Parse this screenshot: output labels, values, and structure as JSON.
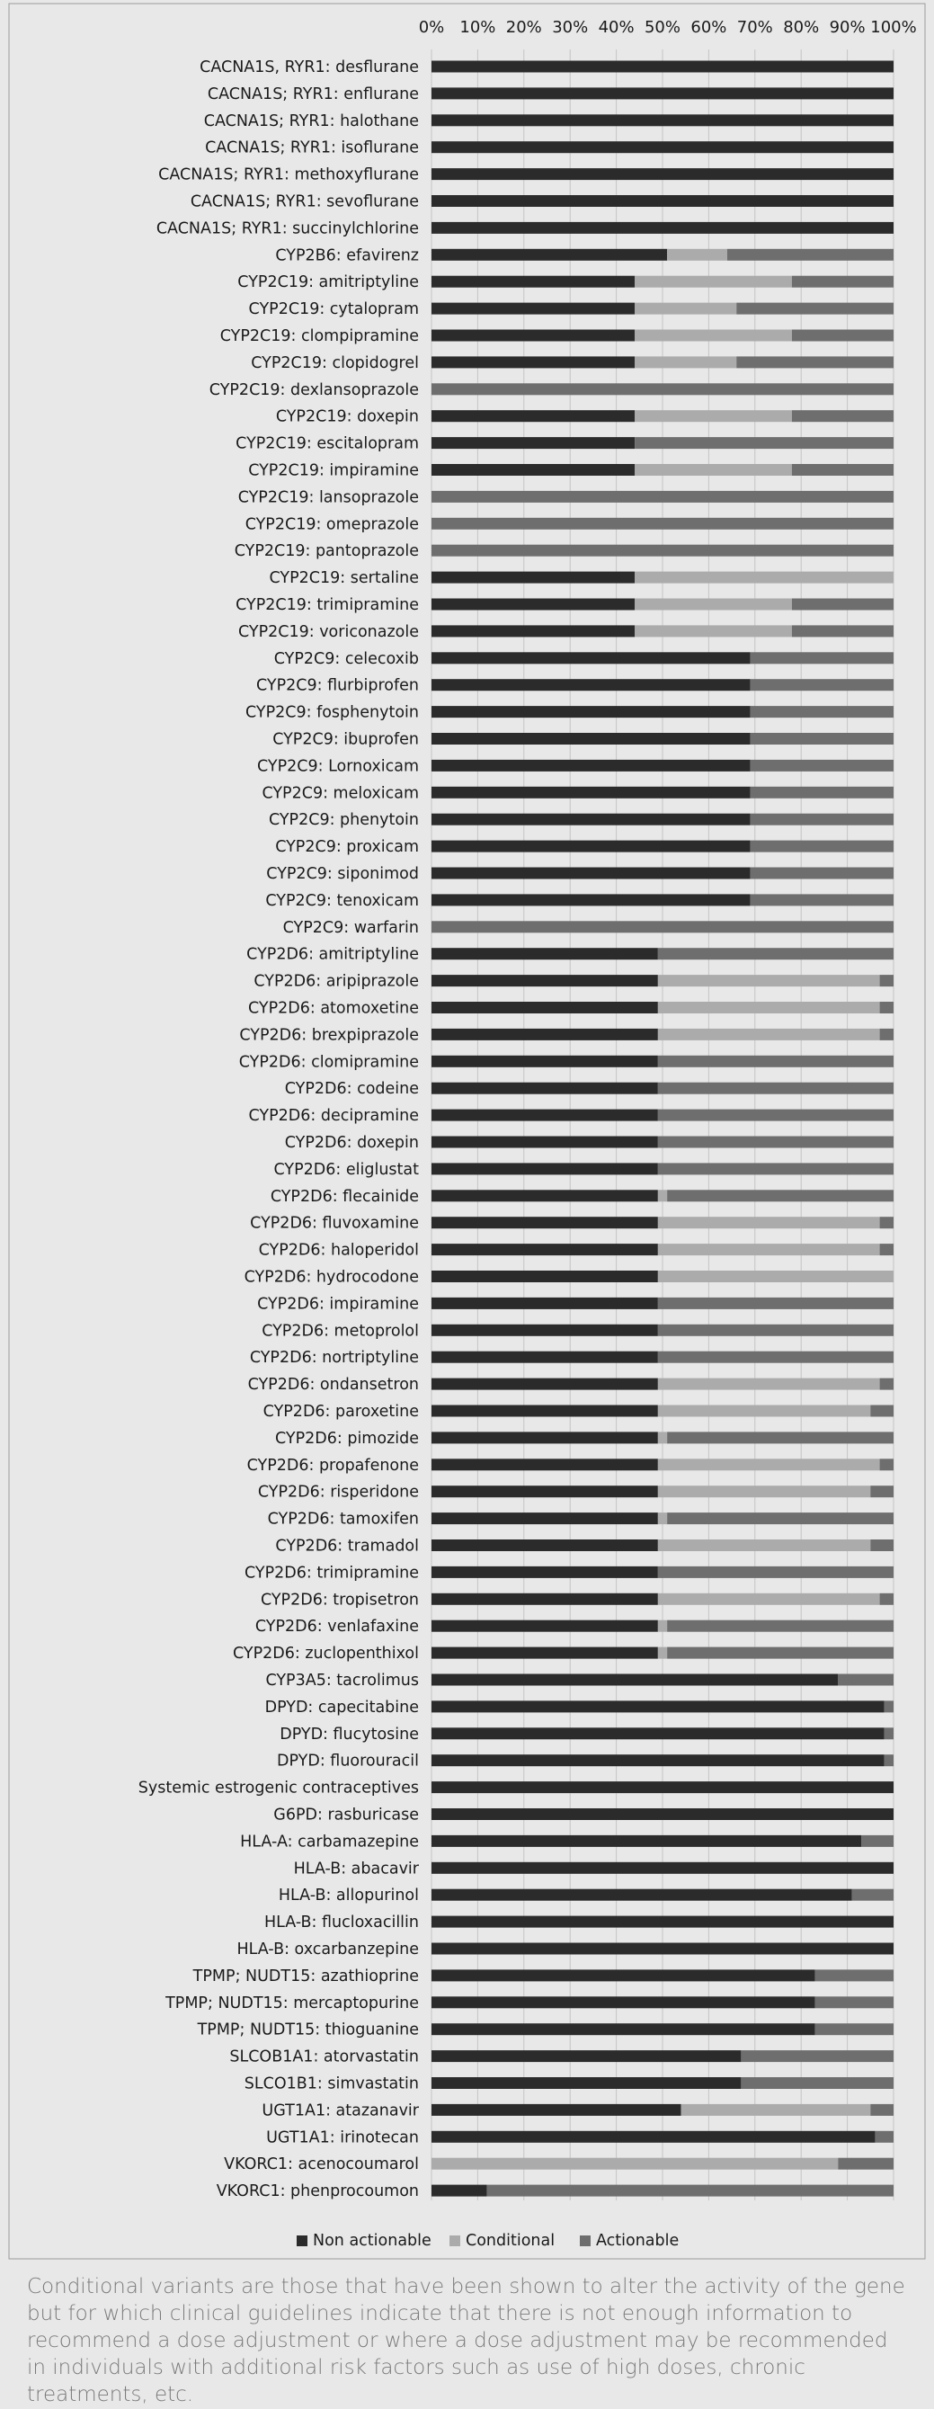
{
  "chart_data": {
    "type": "bar",
    "stacked": true,
    "orientation": "horizontal",
    "x_ticks": [
      "0%",
      "10%",
      "20%",
      "30%",
      "40%",
      "50%",
      "60%",
      "70%",
      "80%",
      "90%",
      "100%"
    ],
    "xlim": [
      0,
      100
    ],
    "legend_position": "bottom",
    "series": [
      {
        "name": "Non actionable",
        "color": "#2b2b2b"
      },
      {
        "name": "Conditional",
        "color": "#ababab"
      },
      {
        "name": "Actionable",
        "color": "#6e6e6e"
      }
    ],
    "rows": [
      {
        "label": "CACNA1S, RYR1: desflurane",
        "values": [
          100,
          0,
          0
        ]
      },
      {
        "label": "CACNA1S; RYR1: enflurane",
        "values": [
          100,
          0,
          0
        ]
      },
      {
        "label": "CACNA1S; RYR1: halothane",
        "values": [
          100,
          0,
          0
        ]
      },
      {
        "label": "CACNA1S; RYR1: isoflurane",
        "values": [
          100,
          0,
          0
        ]
      },
      {
        "label": "CACNA1S; RYR1: methoxyflurane",
        "values": [
          100,
          0,
          0
        ]
      },
      {
        "label": "CACNA1S; RYR1: sevoflurane",
        "values": [
          100,
          0,
          0
        ]
      },
      {
        "label": "CACNA1S; RYR1: succinylchlorine",
        "values": [
          100,
          0,
          0
        ]
      },
      {
        "label": "CYP2B6: efavirenz",
        "values": [
          51,
          13,
          36
        ]
      },
      {
        "label": "CYP2C19: amitriptyline",
        "values": [
          44,
          34,
          22
        ]
      },
      {
        "label": "CYP2C19: cytalopram",
        "values": [
          44,
          22,
          34
        ]
      },
      {
        "label": "CYP2C19: clompipramine",
        "values": [
          44,
          34,
          22
        ]
      },
      {
        "label": "CYP2C19: clopidogrel",
        "values": [
          44,
          22,
          34
        ]
      },
      {
        "label": "CYP2C19: dexlansoprazole",
        "values": [
          0,
          0,
          100
        ]
      },
      {
        "label": "CYP2C19: doxepin",
        "values": [
          44,
          34,
          22
        ]
      },
      {
        "label": "CYP2C19: escitalopram",
        "values": [
          44,
          0,
          56
        ]
      },
      {
        "label": "CYP2C19: impiramine",
        "values": [
          44,
          34,
          22
        ]
      },
      {
        "label": "CYP2C19: lansoprazole",
        "values": [
          0,
          0,
          100
        ]
      },
      {
        "label": "CYP2C19: omeprazole",
        "values": [
          0,
          0,
          100
        ]
      },
      {
        "label": "CYP2C19: pantoprazole",
        "values": [
          0,
          0,
          100
        ]
      },
      {
        "label": "CYP2C19: sertaline",
        "values": [
          44,
          56,
          0
        ]
      },
      {
        "label": "CYP2C19: trimipramine",
        "values": [
          44,
          34,
          22
        ]
      },
      {
        "label": "CYP2C19: voriconazole",
        "values": [
          44,
          34,
          22
        ]
      },
      {
        "label": "CYP2C9: celecoxib",
        "values": [
          69,
          0,
          31
        ]
      },
      {
        "label": "CYP2C9: flurbiprofen",
        "values": [
          69,
          0,
          31
        ]
      },
      {
        "label": "CYP2C9: fosphenytoin",
        "values": [
          69,
          0,
          31
        ]
      },
      {
        "label": "CYP2C9: ibuprofen",
        "values": [
          69,
          0,
          31
        ]
      },
      {
        "label": "CYP2C9: Lornoxicam",
        "values": [
          69,
          0,
          31
        ]
      },
      {
        "label": "CYP2C9: meloxicam",
        "values": [
          69,
          0,
          31
        ]
      },
      {
        "label": "CYP2C9: phenytoin",
        "values": [
          69,
          0,
          31
        ]
      },
      {
        "label": "CYP2C9: proxicam",
        "values": [
          69,
          0,
          31
        ]
      },
      {
        "label": "CYP2C9: siponimod",
        "values": [
          69,
          0,
          31
        ]
      },
      {
        "label": "CYP2C9: tenoxicam",
        "values": [
          69,
          0,
          31
        ]
      },
      {
        "label": "CYP2C9: warfarin",
        "values": [
          0,
          0,
          100
        ]
      },
      {
        "label": "CYP2D6: amitriptyline",
        "values": [
          49,
          0,
          51
        ]
      },
      {
        "label": "CYP2D6: aripiprazole",
        "values": [
          49,
          48,
          3
        ]
      },
      {
        "label": "CYP2D6: atomoxetine",
        "values": [
          49,
          48,
          3
        ]
      },
      {
        "label": "CYP2D6: brexpiprazole",
        "values": [
          49,
          48,
          3
        ]
      },
      {
        "label": "CYP2D6: clomipramine",
        "values": [
          49,
          0,
          51
        ]
      },
      {
        "label": "CYP2D6: codeine",
        "values": [
          49,
          0,
          51
        ]
      },
      {
        "label": "CYP2D6: decipramine",
        "values": [
          49,
          0,
          51
        ]
      },
      {
        "label": "CYP2D6: doxepin",
        "values": [
          49,
          0,
          51
        ]
      },
      {
        "label": "CYP2D6: eliglustat",
        "values": [
          49,
          0,
          51
        ]
      },
      {
        "label": "CYP2D6: flecainide",
        "values": [
          49,
          2,
          49
        ]
      },
      {
        "label": "CYP2D6: fluvoxamine",
        "values": [
          49,
          48,
          3
        ]
      },
      {
        "label": "CYP2D6: haloperidol",
        "values": [
          49,
          48,
          3
        ]
      },
      {
        "label": "CYP2D6: hydrocodone",
        "values": [
          49,
          51,
          0
        ]
      },
      {
        "label": "CYP2D6: impiramine",
        "values": [
          49,
          0,
          51
        ]
      },
      {
        "label": "CYP2D6: metoprolol",
        "values": [
          49,
          0,
          51
        ]
      },
      {
        "label": "CYP2D6: nortriptyline",
        "values": [
          49,
          0,
          51
        ]
      },
      {
        "label": "CYP2D6: ondansetron",
        "values": [
          49,
          48,
          3
        ]
      },
      {
        "label": "CYP2D6: paroxetine",
        "values": [
          49,
          46,
          5
        ]
      },
      {
        "label": "CYP2D6: pimozide",
        "values": [
          49,
          2,
          49
        ]
      },
      {
        "label": "CYP2D6: propafenone",
        "values": [
          49,
          48,
          3
        ]
      },
      {
        "label": "CYP2D6: risperidone",
        "values": [
          49,
          46,
          5
        ]
      },
      {
        "label": "CYP2D6: tamoxifen",
        "values": [
          49,
          2,
          49
        ]
      },
      {
        "label": "CYP2D6: tramadol",
        "values": [
          49,
          46,
          5
        ]
      },
      {
        "label": "CYP2D6: trimipramine",
        "values": [
          49,
          0,
          51
        ]
      },
      {
        "label": "CYP2D6: tropisetron",
        "values": [
          49,
          48,
          3
        ]
      },
      {
        "label": "CYP2D6: venlafaxine",
        "values": [
          49,
          2,
          49
        ]
      },
      {
        "label": "CYP2D6: zuclopenthixol",
        "values": [
          49,
          2,
          49
        ]
      },
      {
        "label": "CYP3A5: tacrolimus",
        "values": [
          88,
          0,
          12
        ]
      },
      {
        "label": "DPYD: capecitabine",
        "values": [
          98,
          0,
          2
        ]
      },
      {
        "label": "DPYD: flucytosine",
        "values": [
          98,
          0,
          2
        ]
      },
      {
        "label": "DPYD: fluorouracil",
        "values": [
          98,
          0,
          2
        ]
      },
      {
        "label": "Systemic estrogenic contraceptives",
        "values": [
          100,
          0,
          0
        ]
      },
      {
        "label": "G6PD: rasburicase",
        "values": [
          100,
          0,
          0
        ]
      },
      {
        "label": "HLA-A: carbamazepine",
        "values": [
          93,
          0,
          7
        ]
      },
      {
        "label": "HLA-B: abacavir",
        "values": [
          100,
          0,
          0
        ]
      },
      {
        "label": "HLA-B: allopurinol",
        "values": [
          91,
          0,
          9
        ]
      },
      {
        "label": "HLA-B: flucloxacillin",
        "values": [
          100,
          0,
          0
        ]
      },
      {
        "label": "HLA-B: oxcarbanzepine",
        "values": [
          100,
          0,
          0
        ]
      },
      {
        "label": "TPMP; NUDT15: azathioprine",
        "values": [
          83,
          0,
          17
        ]
      },
      {
        "label": "TPMP; NUDT15: mercaptopurine",
        "values": [
          83,
          0,
          17
        ]
      },
      {
        "label": "TPMP; NUDT15: thioguanine",
        "values": [
          83,
          0,
          17
        ]
      },
      {
        "label": "SLCOB1A1: atorvastatin",
        "values": [
          67,
          0,
          33
        ]
      },
      {
        "label": "SLCO1B1: simvastatin",
        "values": [
          67,
          0,
          33
        ]
      },
      {
        "label": "UGT1A1: atazanavir",
        "values": [
          54,
          41,
          5
        ]
      },
      {
        "label": "UGT1A1: irinotecan",
        "values": [
          96,
          0,
          4
        ]
      },
      {
        "label": "VKORC1: acenocoumarol",
        "values": [
          0,
          88,
          12
        ]
      },
      {
        "label": "VKORC1: phenprocoumon",
        "values": [
          12,
          0,
          88
        ]
      }
    ]
  },
  "caption": "Conditional variants are those that have been shown to alter the activity of the gene but for which clinical guidelines indicate that there is not enough information to recommend a dose adjustment or where a dose adjustment may be recommended in individuals with additional risk factors such as use of high doses, chronic treatments, etc."
}
